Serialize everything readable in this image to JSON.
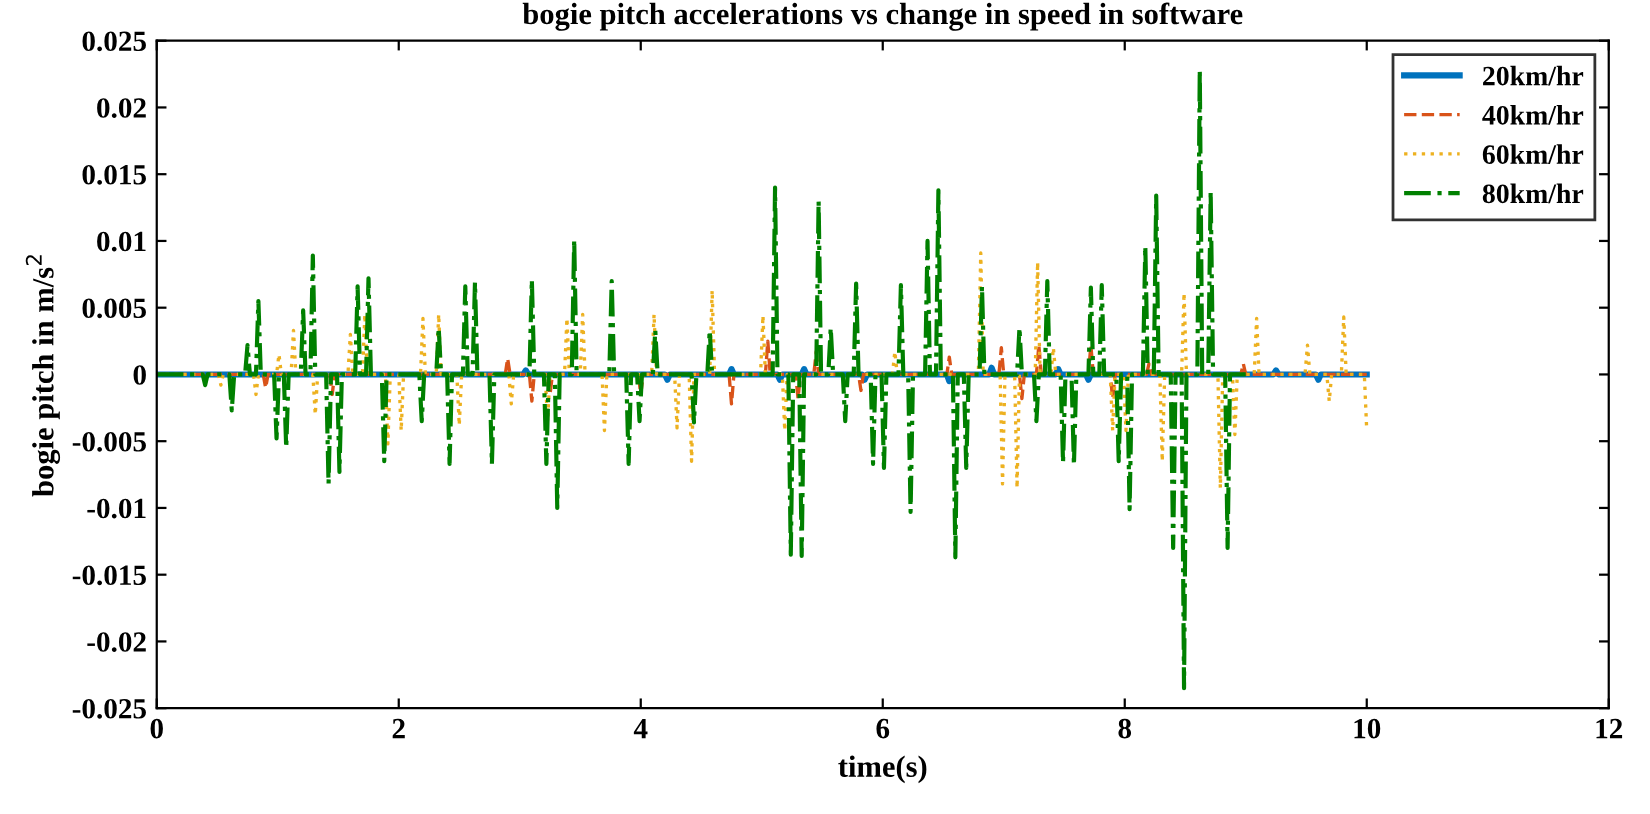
{
  "chart_data": {
    "type": "line",
    "title": "bogie pitch accelerations vs change in speed in software",
    "xlabel": "time(s)",
    "ylabel": "bogie pitch in m/s$^{2}$",
    "xlim": [
      0,
      12
    ],
    "xticks": [
      0,
      2,
      4,
      6,
      8,
      10,
      12
    ],
    "ylim": [
      -0.025,
      0.025
    ],
    "yticks": [
      -0.025,
      -0.02,
      -0.015,
      -0.01,
      -0.005,
      0,
      0.005,
      0.01,
      0.015,
      0.02,
      0.025
    ],
    "grid": false,
    "legend": "top right",
    "series": [
      {
        "name": "20km/hr",
        "color": "#0072bd",
        "line_style": "solid",
        "x": [
          0,
          3.03,
          3.05,
          3.07,
          4.2,
          4.22,
          4.24,
          4.73,
          4.75,
          4.77,
          5.13,
          5.15,
          5.17,
          5.33,
          5.35,
          5.37,
          5.83,
          5.85,
          5.87,
          6.53,
          6.55,
          6.57,
          6.88,
          6.9,
          6.92,
          7.43,
          7.45,
          7.47,
          7.68,
          7.7,
          7.72,
          9.23,
          9.25,
          9.27,
          9.58,
          9.6,
          9.62,
          10
        ],
        "values": [
          0,
          0,
          0.0003,
          0,
          0,
          -0.0004,
          0,
          0,
          0.0004,
          0,
          0,
          -0.0004,
          0,
          0,
          0.0004,
          0,
          0,
          -0.0004,
          0,
          0,
          -0.0005,
          0,
          0,
          0.0005,
          0,
          0,
          0.0004,
          0,
          0,
          -0.0004,
          0,
          0,
          0.0003,
          0,
          0,
          -0.0004,
          0,
          0
        ]
      },
      {
        "name": "40km/hr",
        "color": "#d95319",
        "line_style": "dashed",
        "x": [
          0,
          0.88,
          0.9,
          0.92,
          1.43,
          1.45,
          1.47,
          2.88,
          2.9,
          2.92,
          3.08,
          3.1,
          3.12,
          3.23,
          3.25,
          3.27,
          3.98,
          4.0,
          4.02,
          4.73,
          4.75,
          4.77,
          5.03,
          5.05,
          5.07,
          5.28,
          5.3,
          5.32,
          5.43,
          5.45,
          5.47,
          5.8,
          5.82,
          5.84,
          6.53,
          6.55,
          6.57,
          6.96,
          6.98,
          7.0,
          7.13,
          7.15,
          7.17,
          7.27,
          7.29,
          7.31,
          7.7,
          7.72,
          7.74,
          7.88,
          7.9,
          7.92,
          8.18,
          8.2,
          8.22,
          8.96,
          8.98,
          9.0,
          10
        ],
        "values": [
          0,
          0,
          -0.001,
          0,
          0,
          -0.0015,
          0,
          0,
          0.0012,
          0,
          0,
          -0.002,
          0,
          0,
          -0.0015,
          0,
          0,
          -0.0015,
          0,
          0,
          -0.0022,
          0,
          0,
          0.0025,
          0,
          0,
          -0.0018,
          0,
          0,
          0.0017,
          0,
          0,
          -0.0012,
          0,
          0,
          0.0013,
          0,
          0,
          0.002,
          0,
          0,
          -0.0018,
          0,
          0,
          0.0022,
          0,
          0,
          0.0022,
          0,
          0,
          -0.0018,
          0,
          0,
          0.0008,
          0,
          0,
          0.0008,
          0,
          0
        ]
      },
      {
        "name": "60km/hr",
        "color": "#edb120",
        "line_style": "dotted",
        "x": [
          0,
          0.51,
          0.53,
          0.55,
          0.8,
          0.82,
          0.84,
          0.99,
          1.01,
          1.03,
          1.11,
          1.13,
          1.15,
          1.29,
          1.31,
          1.33,
          1.58,
          1.6,
          1.62,
          1.7,
          1.72,
          1.74,
          1.89,
          1.91,
          1.93,
          2.0,
          2.02,
          2.04,
          2.18,
          2.2,
          2.22,
          2.31,
          2.33,
          2.35,
          2.48,
          2.5,
          2.52,
          2.91,
          2.93,
          2.95,
          3.21,
          3.23,
          3.25,
          3.37,
          3.39,
          3.41,
          3.5,
          3.52,
          3.54,
          3.68,
          3.7,
          3.72,
          4.09,
          4.11,
          4.13,
          4.28,
          4.3,
          4.32,
          4.4,
          4.42,
          4.44,
          4.57,
          4.59,
          4.61,
          4.99,
          5.01,
          5.03,
          5.17,
          5.19,
          5.21,
          6.08,
          6.1,
          6.12,
          6.79,
          6.81,
          6.83,
          6.97,
          6.99,
          7.01,
          7.09,
          7.11,
          7.13,
          7.26,
          7.28,
          7.3,
          7.39,
          7.41,
          7.43,
          7.88,
          7.9,
          7.92,
          7.99,
          8.01,
          8.03,
          8.29,
          8.31,
          8.33,
          8.47,
          8.49,
          8.51,
          8.77,
          8.79,
          8.81,
          8.89,
          8.91,
          8.93,
          9.07,
          9.09,
          9.11,
          9.49,
          9.51,
          9.53,
          9.67,
          9.69,
          9.71,
          9.79,
          9.81,
          9.83,
          9.98,
          10
        ],
        "values": [
          0,
          0,
          -0.0008,
          0,
          0,
          -0.0015,
          0,
          0,
          0.0015,
          0,
          0,
          0.0033,
          0,
          0,
          -0.003,
          0,
          0,
          0.003,
          0,
          0,
          0.0045,
          0,
          0,
          -0.0052,
          0,
          0,
          -0.0042,
          0,
          0,
          0.0042,
          0,
          0,
          0.0045,
          0,
          0,
          -0.0038,
          0,
          0,
          -0.0022,
          0,
          0,
          -0.0035,
          0,
          0,
          0.0042,
          0,
          0,
          0.0045,
          0,
          0,
          -0.0042,
          0,
          0,
          0.0045,
          0,
          0,
          -0.004,
          0,
          0,
          -0.0065,
          0,
          0,
          0.0063,
          0,
          0,
          0.0044,
          0,
          0,
          -0.0042,
          0,
          0,
          0.0017,
          0,
          0,
          0.0091,
          0,
          0,
          -0.0082,
          0,
          0,
          -0.0085,
          0,
          0,
          0.0084,
          0,
          0,
          0.002,
          0,
          0,
          -0.0042,
          0,
          0,
          -0.0042,
          0,
          0,
          -0.0065,
          0,
          0,
          0.0061,
          0,
          0,
          -0.0085,
          0,
          0,
          -0.0045,
          0,
          0,
          0.0042,
          0,
          0,
          0.0022,
          0,
          0,
          -0.002,
          0,
          0,
          0.0043,
          0,
          0,
          -0.0042
        ]
      },
      {
        "name": "80km/hr",
        "color": "#008000",
        "line_style": "dashdot",
        "x": [
          0,
          0.38,
          0.4,
          0.42,
          0.6,
          0.62,
          0.64,
          0.73,
          0.75,
          0.77,
          0.82,
          0.84,
          0.86,
          0.97,
          0.99,
          1.01,
          1.05,
          1.07,
          1.09,
          1.19,
          1.21,
          1.23,
          1.27,
          1.29,
          1.31,
          1.4,
          1.42,
          1.44,
          1.49,
          1.51,
          1.53,
          1.64,
          1.66,
          1.68,
          1.73,
          1.75,
          1.77,
          1.86,
          1.88,
          1.9,
          2.17,
          2.19,
          2.21,
          2.31,
          2.33,
          2.35,
          2.4,
          2.42,
          2.44,
          2.53,
          2.55,
          2.57,
          2.61,
          2.63,
          2.65,
          2.75,
          2.77,
          2.79,
          3.08,
          3.1,
          3.12,
          3.2,
          3.22,
          3.24,
          3.29,
          3.31,
          3.33,
          3.43,
          3.45,
          3.47,
          3.74,
          3.76,
          3.78,
          3.88,
          3.9,
          3.92,
          3.97,
          3.99,
          4.01,
          4.1,
          4.12,
          4.14,
          4.42,
          4.44,
          4.46,
          4.55,
          4.57,
          4.59,
          5.09,
          5.11,
          5.13,
          5.22,
          5.24,
          5.26,
          5.31,
          5.33,
          5.35,
          5.45,
          5.47,
          5.49,
          5.55,
          5.57,
          5.59,
          5.67,
          5.69,
          5.71,
          5.76,
          5.78,
          5.8,
          5.9,
          5.92,
          5.94,
          5.99,
          6.01,
          6.03,
          6.13,
          6.15,
          6.17,
          6.21,
          6.23,
          6.25,
          6.35,
          6.37,
          6.39,
          6.44,
          6.46,
          6.48,
          6.58,
          6.6,
          6.62,
          6.67,
          6.69,
          6.71,
          6.8,
          6.82,
          6.84,
          7.11,
          7.13,
          7.15,
          7.25,
          7.27,
          7.29,
          7.34,
          7.36,
          7.38,
          7.47,
          7.49,
          7.51,
          7.56,
          7.58,
          7.6,
          7.7,
          7.72,
          7.74,
          7.79,
          7.81,
          7.83,
          7.93,
          7.95,
          7.97,
          8.02,
          8.04,
          8.06,
          8.15,
          8.17,
          8.19,
          8.24,
          8.26,
          8.28,
          8.38,
          8.4,
          8.42,
          8.47,
          8.49,
          8.51,
          8.6,
          8.62,
          8.64,
          8.69,
          8.71,
          8.73,
          8.83,
          8.85,
          8.87,
          9.0
        ],
        "values": [
          0,
          0,
          -0.0008,
          0,
          0,
          -0.0027,
          0,
          0,
          0.0022,
          0,
          0,
          0.0055,
          0,
          0,
          -0.0048,
          0,
          0,
          -0.0055,
          0,
          0,
          0.0048,
          0,
          0,
          0.0089,
          0,
          0,
          -0.0082,
          0,
          0,
          -0.0073,
          0,
          0,
          0.0066,
          0,
          0,
          0.0072,
          0,
          0,
          -0.0065,
          0,
          0,
          -0.0035,
          0,
          0,
          0.0035,
          0,
          0,
          -0.0067,
          0,
          0,
          0.0066,
          0,
          0,
          0.0069,
          0,
          0,
          -0.0067,
          0,
          0,
          0.0071,
          0,
          0,
          -0.0067,
          0,
          0,
          -0.01,
          0,
          0,
          0.0101,
          0,
          0,
          0.007,
          0,
          0,
          -0.0067,
          0,
          0,
          -0.0035,
          0,
          0,
          0.0033,
          0,
          0,
          -0.0036,
          0,
          0,
          0.0033,
          0,
          0,
          0.014,
          0,
          0,
          -0.0135,
          0,
          0,
          -0.0136,
          0,
          0,
          0.013,
          0,
          0,
          0.0035,
          0,
          0,
          -0.0035,
          0,
          0,
          0.0068,
          0,
          0,
          -0.0067,
          0,
          0,
          -0.007,
          0,
          0,
          0.0067,
          0,
          0,
          -0.0103,
          0,
          0,
          0.01,
          0,
          0,
          0.0138,
          0,
          0,
          -0.0137,
          0,
          0,
          -0.007,
          0,
          0,
          0.0066,
          0,
          0,
          0.0035,
          0,
          0,
          -0.0035,
          0,
          0,
          0.007,
          0,
          0,
          -0.0066,
          0,
          0,
          -0.0068,
          0,
          0,
          0.0065,
          0,
          0,
          0.0067,
          0,
          0,
          -0.0065,
          0,
          0,
          -0.0101,
          0,
          0,
          0.0096,
          0,
          0,
          0.0134,
          0,
          0,
          -0.013,
          0,
          0,
          -0.0235,
          0,
          0,
          0.0228,
          0,
          0,
          0.0137,
          0,
          0,
          -0.013,
          0,
          0
        ]
      }
    ]
  }
}
